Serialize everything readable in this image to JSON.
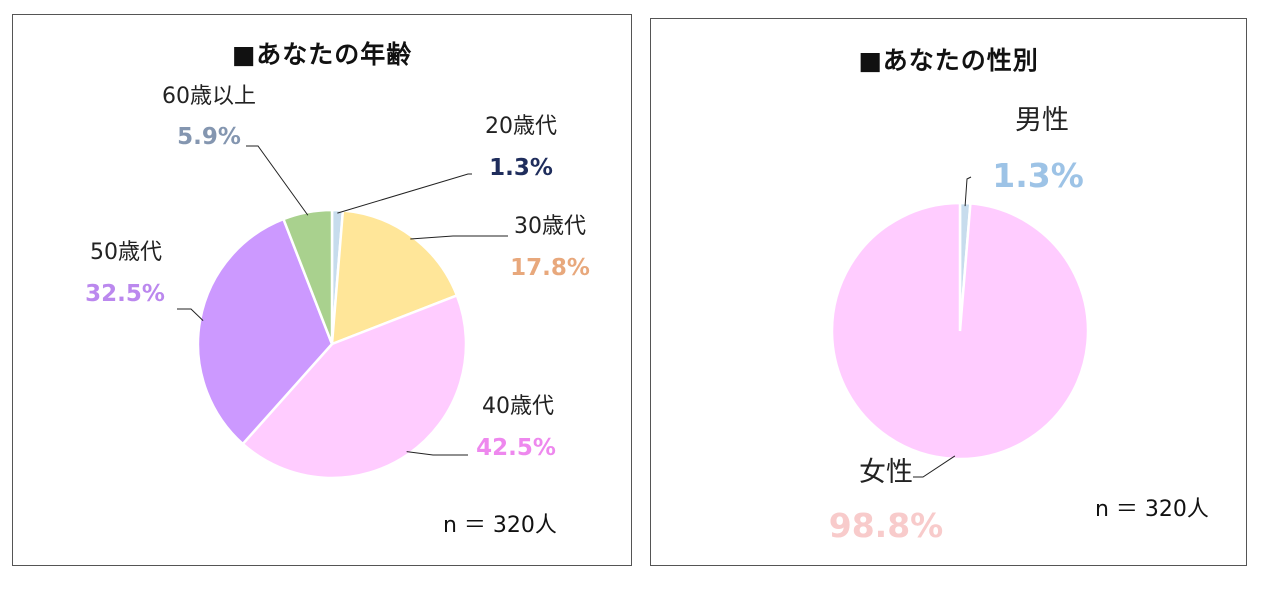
{
  "chart_data": [
    {
      "type": "pie",
      "title": "■あなたの年齢",
      "n_label": "n ＝ 320人",
      "slices": [
        {
          "label": "20歳代",
          "value": 1.3,
          "value_label": "1.3%",
          "color": "#c7dced",
          "label_color": "#1f2d5c"
        },
        {
          "label": "30歳代",
          "value": 17.8,
          "value_label": "17.8%",
          "color": "#ffe699",
          "label_color": "#e8a87c"
        },
        {
          "label": "40歳代",
          "value": 42.5,
          "value_label": "42.5%",
          "color": "#ffccff",
          "label_color": "#ee88ee"
        },
        {
          "label": "50歳代",
          "value": 32.5,
          "value_label": "32.5%",
          "color": "#cc99ff",
          "label_color": "#bb88ee"
        },
        {
          "label": "60歳以上",
          "value": 5.9,
          "value_label": "5.9%",
          "color": "#a9d18e",
          "label_color": "#8496b0"
        }
      ]
    },
    {
      "type": "pie",
      "title": "■あなたの性別",
      "n_label": "n ＝ 320人",
      "slices": [
        {
          "label": "男性",
          "value": 1.3,
          "value_label": "1.3%",
          "color": "#c7dced",
          "label_color": "#9dc3e6"
        },
        {
          "label": "女性",
          "value": 98.8,
          "value_label": "98.8%",
          "color": "#ffccff",
          "label_color": "#f8cbcb"
        }
      ]
    }
  ]
}
